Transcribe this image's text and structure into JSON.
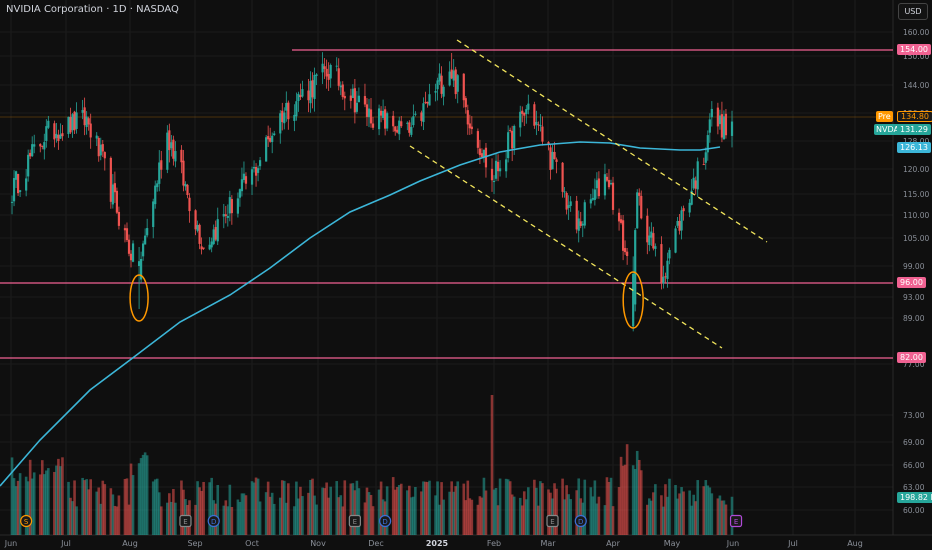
{
  "header": {
    "title": "NVIDIA Corporation · 1D · NASDAQ",
    "currency": "USD"
  },
  "price_labels": {
    "resistance": "154.00",
    "pre_tag": "Pre",
    "pre_value": "134.80",
    "symbol": "NVDA",
    "last": "131.29",
    "ma": "126.13",
    "support_96": "96.00",
    "support_82": "82.00",
    "volume": "198.82 M"
  },
  "colors": {
    "background": "#0f0f0f",
    "up": "#26a69a",
    "down": "#ef5350",
    "ma_line": "#3cb6d8",
    "level_line": "#f06292",
    "channel": "#f2e55c",
    "marker": "#ff9800",
    "pre": "#ff9800"
  },
  "chart_data": {
    "type": "candlestick",
    "x_labels": [
      "Jun",
      "Jul",
      "Aug",
      "Sep",
      "Oct",
      "Nov",
      "Dec",
      "2025",
      "Feb",
      "Mar",
      "Apr",
      "May",
      "Jun",
      "Jul",
      "Aug"
    ],
    "y_ticks": [
      160,
      150,
      144,
      136,
      128,
      120,
      115,
      110,
      105,
      99,
      93,
      89,
      82,
      77,
      73,
      69,
      66,
      63,
      60
    ],
    "y_log_scale": true,
    "horizontal_levels": [
      154,
      96,
      82
    ],
    "last_price": 131.29,
    "premarket_price": 134.8,
    "moving_average_last": 126.13,
    "last_volume_m": 198.82,
    "close_path": [
      {
        "date": "2024-06-01",
        "close": 114
      },
      {
        "date": "2024-06-20",
        "close": 130
      },
      {
        "date": "2024-07-10",
        "close": 134
      },
      {
        "date": "2024-07-30",
        "close": 104
      },
      {
        "date": "2024-08-05",
        "close": 98
      },
      {
        "date": "2024-08-19",
        "close": 130
      },
      {
        "date": "2024-09-06",
        "close": 103
      },
      {
        "date": "2024-10-01",
        "close": 120
      },
      {
        "date": "2024-10-15",
        "close": 136
      },
      {
        "date": "2024-11-07",
        "close": 148
      },
      {
        "date": "2024-11-26",
        "close": 136
      },
      {
        "date": "2024-12-17",
        "close": 130
      },
      {
        "date": "2025-01-06",
        "close": 149
      },
      {
        "date": "2025-01-27",
        "close": 118
      },
      {
        "date": "2025-02-14",
        "close": 138
      },
      {
        "date": "2025-03-10",
        "close": 107
      },
      {
        "date": "2025-03-25",
        "close": 120
      },
      {
        "date": "2025-04-07",
        "close": 94
      },
      {
        "date": "2025-04-09",
        "close": 114
      },
      {
        "date": "2025-04-21",
        "close": 97
      },
      {
        "date": "2025-05-12",
        "close": 124
      },
      {
        "date": "2025-05-15",
        "close": 135
      },
      {
        "date": "2025-05-23",
        "close": 131.29
      }
    ]
  }
}
